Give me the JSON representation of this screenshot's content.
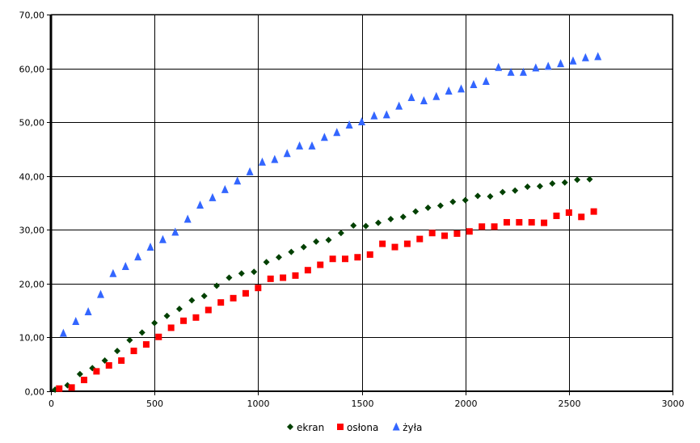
{
  "chart_data": {
    "type": "scatter",
    "title": "",
    "xlabel": "",
    "ylabel": "",
    "xlim": [
      0,
      3000
    ],
    "ylim": [
      0,
      70
    ],
    "x_ticks": [
      "0",
      "500",
      "1000",
      "1500",
      "2000",
      "2500",
      "3000"
    ],
    "y_ticks": [
      "0,00",
      "10,00",
      "20,00",
      "30,00",
      "40,00",
      "50,00",
      "60,00",
      "70,00"
    ],
    "grid": true,
    "legend_position": "bottom",
    "series": [
      {
        "name": "ekran",
        "color": "#004000",
        "marker": "diamond",
        "x": [
          20,
          80,
          140,
          200,
          260,
          320,
          380,
          440,
          500,
          560,
          620,
          680,
          740,
          800,
          860,
          920,
          980,
          1040,
          1100,
          1160,
          1220,
          1280,
          1340,
          1400,
          1460,
          1520,
          1580,
          1640,
          1700,
          1760,
          1820,
          1880,
          1940,
          2000,
          2060,
          2120,
          2180,
          2240,
          2300,
          2360,
          2420,
          2480,
          2540,
          2600
        ],
        "y": [
          0.3,
          1.1,
          3.2,
          4.3,
          5.7,
          7.5,
          9.5,
          10.9,
          12.7,
          14.0,
          15.3,
          16.9,
          17.7,
          19.6,
          21.1,
          21.9,
          22.2,
          24.0,
          24.9,
          25.9,
          26.8,
          27.8,
          28.1,
          29.4,
          30.8,
          30.7,
          31.3,
          32.0,
          32.4,
          33.4,
          34.1,
          34.5,
          35.2,
          35.5,
          36.3,
          36.2,
          37.0,
          37.3,
          38.0,
          38.1,
          38.6,
          38.8,
          39.3,
          39.4
        ]
      },
      {
        "name": "osłona",
        "color": "#ff0000",
        "marker": "square",
        "x": [
          40,
          100,
          160,
          220,
          280,
          340,
          400,
          460,
          520,
          580,
          640,
          700,
          760,
          820,
          880,
          940,
          1000,
          1060,
          1120,
          1180,
          1240,
          1300,
          1360,
          1420,
          1480,
          1540,
          1600,
          1660,
          1720,
          1780,
          1840,
          1900,
          1960,
          2020,
          2080,
          2140,
          2200,
          2260,
          2320,
          2380,
          2440,
          2500,
          2560,
          2620
        ],
        "y": [
          0.5,
          0.7,
          2.1,
          3.7,
          4.8,
          5.7,
          7.5,
          8.7,
          10.1,
          11.8,
          13.1,
          13.7,
          15.1,
          16.5,
          17.3,
          18.2,
          19.2,
          20.9,
          21.1,
          21.5,
          22.5,
          23.5,
          24.6,
          24.6,
          24.9,
          25.4,
          27.4,
          26.8,
          27.4,
          28.3,
          29.4,
          28.9,
          29.3,
          29.7,
          30.6,
          30.6,
          31.4,
          31.4,
          31.4,
          31.3,
          32.6,
          33.2,
          32.4,
          33.4
        ]
      },
      {
        "name": "żyła",
        "color": "#3366ff",
        "marker": "triangle",
        "x": [
          60,
          120,
          180,
          240,
          300,
          360,
          420,
          480,
          540,
          600,
          660,
          720,
          780,
          840,
          900,
          960,
          1020,
          1080,
          1140,
          1200,
          1260,
          1320,
          1380,
          1440,
          1500,
          1560,
          1620,
          1680,
          1740,
          1800,
          1860,
          1920,
          1980,
          2040,
          2100,
          2160,
          2220,
          2280,
          2340,
          2400,
          2460,
          2520,
          2580,
          2640
        ],
        "y": [
          10.8,
          13.0,
          14.8,
          18.0,
          21.9,
          23.2,
          25.0,
          26.8,
          28.2,
          29.6,
          32.0,
          34.6,
          36.0,
          37.5,
          39.1,
          40.8,
          42.6,
          43.1,
          44.2,
          45.6,
          45.6,
          47.2,
          48.1,
          49.5,
          50.1,
          51.2,
          51.4,
          53.0,
          54.6,
          54.0,
          54.8,
          55.8,
          56.2,
          57.0,
          57.6,
          60.2,
          59.3,
          59.3,
          60.1,
          60.4,
          60.9,
          61.4,
          62.0,
          62.2
        ]
      }
    ]
  }
}
